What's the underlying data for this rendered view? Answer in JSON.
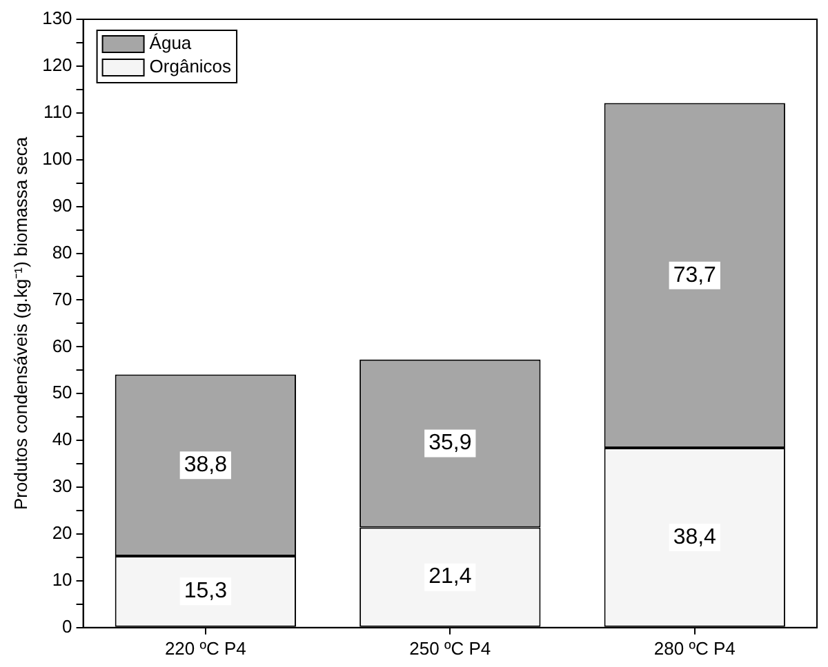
{
  "chart_data": {
    "type": "bar",
    "stacked": true,
    "ylabel": "Produtos condensáveis (g.kg⁻¹) biomassa seca",
    "categories": [
      "220 ºC P4",
      "250 ºC P4",
      "280 ºC P4"
    ],
    "series": [
      {
        "name": "Orgânicos",
        "color": "#f5f5f5",
        "values": [
          15.3,
          21.4,
          38.4
        ],
        "value_labels": [
          "15,3",
          "21,4",
          "38,4"
        ]
      },
      {
        "name": "Água",
        "color": "#a6a6a6",
        "values": [
          38.8,
          35.9,
          73.7
        ],
        "value_labels": [
          "38,8",
          "35,9",
          "73,7"
        ]
      }
    ],
    "ylim": [
      0,
      130
    ],
    "yticks": [
      0,
      {
        "value": 5,
        "label": null
      },
      10,
      {
        "value": 15,
        "label": null
      },
      20,
      {
        "value": 25,
        "label": null
      },
      30,
      {
        "value": 35,
        "label": null
      },
      40,
      {
        "value": 45,
        "label": null
      },
      50,
      {
        "value": 55,
        "label": null
      },
      60,
      {
        "value": 65,
        "label": null
      },
      70,
      {
        "value": 75,
        "label": null
      },
      80,
      {
        "value": 85,
        "label": null
      },
      90,
      {
        "value": 95,
        "label": null
      },
      100,
      {
        "value": 105,
        "label": null
      },
      110,
      {
        "value": 115,
        "label": null
      },
      120,
      {
        "value": 125,
        "label": null
      },
      130
    ],
    "grid": false,
    "legend": "top left"
  }
}
